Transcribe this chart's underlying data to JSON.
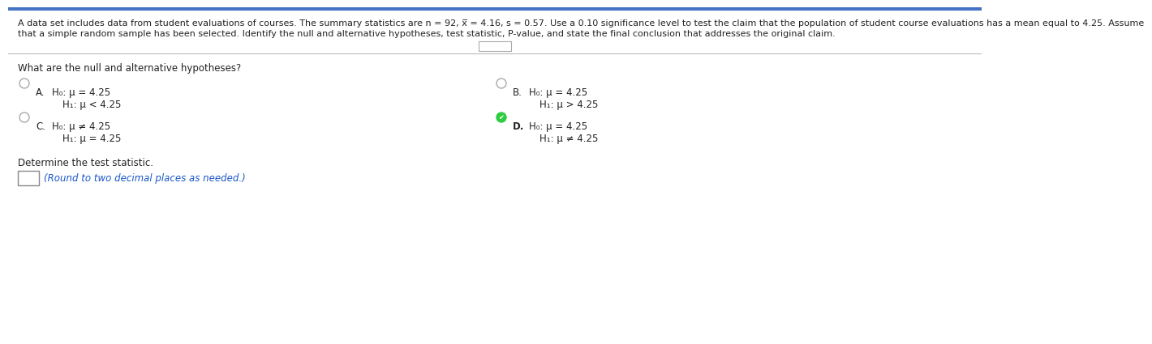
{
  "bg_color": "#ffffff",
  "border_color": "#4472c4",
  "header_line1": "A data set includes data from student evaluations of courses. The summary statistics are n = 92, x̅ = 4.16, s = 0.57. Use a 0.10 significance level to test the claim that the population of student course evaluations has a mean equal to 4.25. Assume",
  "header_line2": "that a simple random sample has been selected. Identify the null and alternative hypotheses, test statistic, P-value, and state the final conclusion that addresses the original claim.",
  "dots_text": ".....",
  "question_text": "What are the null and alternative hypotheses?",
  "option_A_label": "A.",
  "option_A_H0": "H₀: μ = 4.25",
  "option_A_H1": "H₁: μ < 4.25",
  "option_B_label": "B.",
  "option_B_H0": "H₀: μ = 4.25",
  "option_B_H1": "H₁: μ > 4.25",
  "option_C_label": "C.",
  "option_C_H0": "H₀: μ ≠ 4.25",
  "option_C_H1": "H₁: μ = 4.25",
  "option_D_label": "D.",
  "option_D_H0": "H₀: μ = 4.25",
  "option_D_H1": "H₁: μ ≠ 4.25",
  "determine_text": "Determine the test statistic.",
  "round_text": "(Round to two decimal places as needed.)",
  "header_fontsize": 8.0,
  "body_fontsize": 8.5,
  "small_fontsize": 8.5,
  "radio_unselected_color": "#aaaaaa",
  "check_color": "#2ecc40",
  "text_color": "#222222",
  "blue_text_color": "#1a56cc",
  "light_gray": "#bbbbbb",
  "box_border_color": "#888888"
}
